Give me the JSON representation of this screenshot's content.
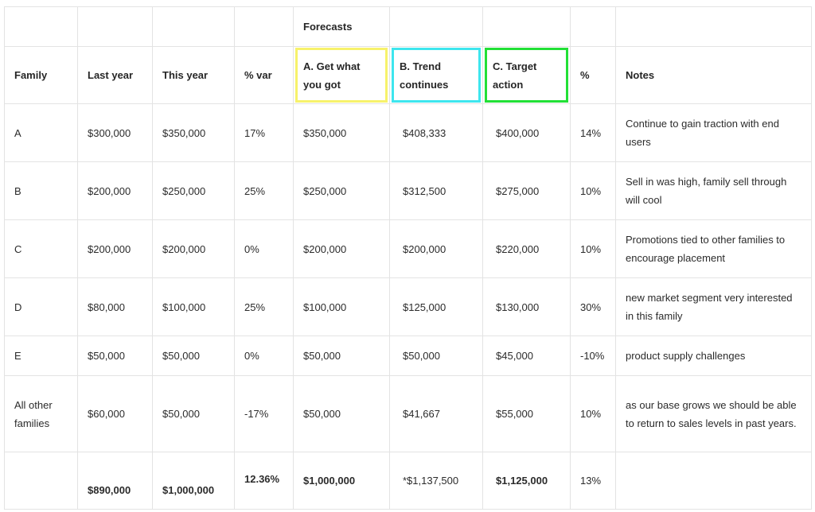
{
  "table": {
    "group_label": "Forecasts",
    "headers": {
      "family": "Family",
      "last_year": "Last year",
      "this_year": "This year",
      "pct_var": "% var",
      "fc_a": "A. Get what you got",
      "fc_b": "B. Trend continues",
      "fc_c": "C. Target action",
      "pct": "%",
      "notes": "Notes"
    },
    "highlight_colors": {
      "fc_a": "#f7f26b",
      "fc_b": "#3ee6ee",
      "fc_c": "#22e036"
    },
    "rows": [
      {
        "family": "A",
        "last_year": "$300,000",
        "this_year": "$350,000",
        "pct_var": "17%",
        "fc_a": "$350,000",
        "fc_b": "$408,333",
        "fc_c": "$400,000",
        "pct": "14%",
        "notes": "Continue to gain traction with end users"
      },
      {
        "family": "B",
        "last_year": "$200,000",
        "this_year": "$250,000",
        "pct_var": "25%",
        "fc_a": "$250,000",
        "fc_b": "$312,500",
        "fc_c": "$275,000",
        "pct": "10%",
        "notes": "Sell in was high, family sell through will cool"
      },
      {
        "family": "C",
        "last_year": "$200,000",
        "this_year": "$200,000",
        "pct_var": "0%",
        "fc_a": "$200,000",
        "fc_b": "$200,000",
        "fc_c": "$220,000",
        "pct": "10%",
        "notes": "Promotions tied to other families to encourage placement"
      },
      {
        "family": "D",
        "last_year": "$80,000",
        "this_year": "$100,000",
        "pct_var": "25%",
        "fc_a": "$100,000",
        "fc_b": "$125,000",
        "fc_c": "$130,000",
        "pct": "30%",
        "notes": "new market segment very interested in this family"
      },
      {
        "family": "E",
        "last_year": "$50,000",
        "this_year": "$50,000",
        "pct_var": "0%",
        "fc_a": "$50,000",
        "fc_b": "$50,000",
        "fc_c": "$45,000",
        "pct": "-10%",
        "notes": "product supply challenges"
      },
      {
        "family": "All other families",
        "last_year": "$60,000",
        "this_year": "$50,000",
        "pct_var": "-17%",
        "fc_a": "$50,000",
        "fc_b": "$41,667",
        "fc_c": "$55,000",
        "pct": "10%",
        "notes": "as our base grows we should be able to return to sales levels in past years."
      }
    ],
    "totals": {
      "family": "",
      "last_year": "$890,000",
      "this_year": "$1,000,000",
      "pct_var": "12.36%",
      "fc_a": "$1,000,000",
      "fc_b": "*$1,137,500",
      "fc_c": "$1,125,000",
      "pct": "13%",
      "notes": ""
    }
  }
}
